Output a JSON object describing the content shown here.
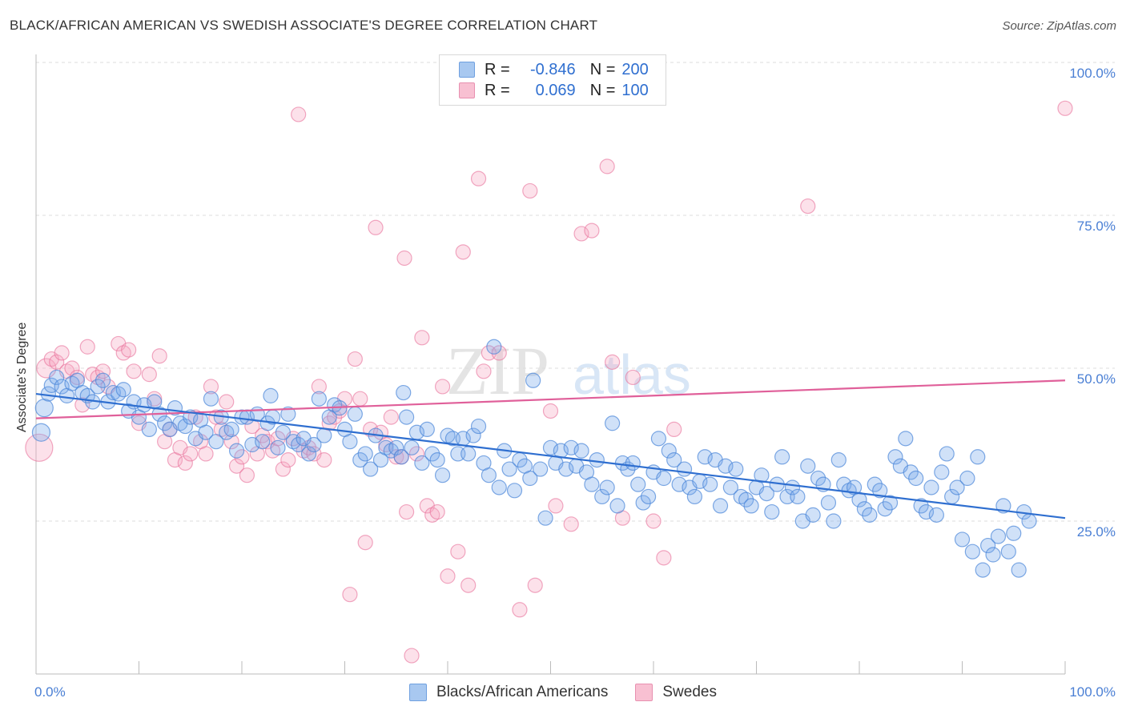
{
  "title": "BLACK/AFRICAN AMERICAN VS SWEDISH ASSOCIATE'S DEGREE CORRELATION CHART",
  "source": "Source: ZipAtlas.com",
  "watermark": {
    "zip": "ZIP",
    "atlas": "atlas"
  },
  "legend": {
    "rows": [
      {
        "r_label": "R =",
        "r_value": "-0.846",
        "n_label": "N =",
        "n_value": "200",
        "color": "#a8c8f0",
        "border": "#6fa0e0"
      },
      {
        "r_label": "R =",
        "r_value": "0.069",
        "n_label": "N =",
        "n_value": "100",
        "color": "#f8c0d2",
        "border": "#e890b0"
      }
    ]
  },
  "colors": {
    "blue": "#4a86d8",
    "blue_fill": "rgba(120,170,235,0.35)",
    "pink": "#e8709a",
    "pink_fill": "rgba(245,170,195,0.35)",
    "tick": "#4a7fd4",
    "blue_line": "#2f6fd0",
    "pink_line": "#e0609a"
  },
  "chart_data": {
    "type": "scatter",
    "title": "BLACK/AFRICAN AMERICAN VS SWEDISH ASSOCIATE'S DEGREE CORRELATION CHART",
    "xlabel": "",
    "ylabel": "Associate's Degree",
    "xlim": [
      0,
      100
    ],
    "ylim": [
      0,
      100
    ],
    "x_ticks": [
      "0.0%",
      "100.0%"
    ],
    "y_ticks": [
      {
        "value": 25,
        "label": "25.0%"
      },
      {
        "value": 50,
        "label": "50.0%"
      },
      {
        "value": 75,
        "label": "75.0%"
      },
      {
        "value": 100,
        "label": "100.0%"
      }
    ],
    "grid": true,
    "legend_position": "bottom",
    "series": [
      {
        "name": "Blacks/African Americans",
        "trend": {
          "x": [
            0,
            100
          ],
          "y": [
            45.8,
            25.5
          ]
        },
        "points": [
          [
            0.5,
            39.5
          ],
          [
            0.8,
            43.5
          ],
          [
            1.2,
            45.8
          ],
          [
            1.5,
            47.2
          ],
          [
            2,
            48.5
          ],
          [
            2.5,
            47
          ],
          [
            3,
            45.5
          ],
          [
            3.5,
            47.5
          ],
          [
            4,
            48
          ],
          [
            4.5,
            46
          ],
          [
            5,
            45.5
          ],
          [
            5.5,
            44.5
          ],
          [
            6,
            47
          ],
          [
            6.5,
            48
          ],
          [
            7,
            44.5
          ],
          [
            7.5,
            46
          ],
          [
            8,
            45.8
          ],
          [
            8.5,
            46.5
          ],
          [
            9,
            43
          ],
          [
            9.5,
            44.5
          ],
          [
            10,
            42
          ],
          [
            10.5,
            44
          ],
          [
            11,
            40
          ],
          [
            11.5,
            44.5
          ],
          [
            12,
            42.5
          ],
          [
            12.5,
            41
          ],
          [
            13,
            40
          ],
          [
            13.5,
            43.5
          ],
          [
            14,
            41
          ],
          [
            14.5,
            40.5
          ],
          [
            15,
            42
          ],
          [
            15.5,
            38.5
          ],
          [
            16,
            41.5
          ],
          [
            16.5,
            39.5
          ],
          [
            17,
            45
          ],
          [
            17.5,
            38
          ],
          [
            18,
            42
          ],
          [
            18.5,
            39.5
          ],
          [
            19,
            40
          ],
          [
            19.5,
            36.5
          ],
          [
            20,
            42
          ],
          [
            20.5,
            42
          ],
          [
            21,
            37.5
          ],
          [
            21.5,
            42.5
          ],
          [
            22,
            38
          ],
          [
            22.5,
            41
          ],
          [
            22.8,
            45.5
          ],
          [
            23,
            42
          ],
          [
            23.5,
            37
          ],
          [
            24,
            39.5
          ],
          [
            24.5,
            42.5
          ],
          [
            25,
            38
          ],
          [
            25.5,
            37.5
          ],
          [
            26,
            38.5
          ],
          [
            26.5,
            36
          ],
          [
            27,
            37.5
          ],
          [
            27.5,
            45
          ],
          [
            28,
            39
          ],
          [
            28.5,
            42
          ],
          [
            29,
            44
          ],
          [
            29.5,
            43.5
          ],
          [
            30,
            40
          ],
          [
            30.5,
            38
          ],
          [
            31,
            42.5
          ],
          [
            31.5,
            35
          ],
          [
            32,
            36
          ],
          [
            32.5,
            33.5
          ],
          [
            33,
            39
          ],
          [
            33.5,
            35
          ],
          [
            34,
            37
          ],
          [
            34.5,
            36.5
          ],
          [
            35,
            37
          ],
          [
            35.5,
            35.5
          ],
          [
            35.7,
            46
          ],
          [
            36,
            42
          ],
          [
            36.5,
            37
          ],
          [
            37,
            39.5
          ],
          [
            37.5,
            34.5
          ],
          [
            38,
            40
          ],
          [
            38.5,
            36
          ],
          [
            39,
            35
          ],
          [
            39.5,
            32.5
          ],
          [
            40,
            39
          ],
          [
            40.5,
            38.5
          ],
          [
            41,
            36
          ],
          [
            41.5,
            38.5
          ],
          [
            42,
            36
          ],
          [
            42.5,
            39
          ],
          [
            43,
            40.5
          ],
          [
            43.5,
            34.5
          ],
          [
            44,
            32.5
          ],
          [
            44.5,
            53.5
          ],
          [
            45,
            30.5
          ],
          [
            45.5,
            36.5
          ],
          [
            46,
            33.5
          ],
          [
            46.5,
            30
          ],
          [
            47,
            35
          ],
          [
            47.5,
            34
          ],
          [
            48,
            32
          ],
          [
            48.3,
            48
          ],
          [
            49,
            33.5
          ],
          [
            49.5,
            25.5
          ],
          [
            50,
            37
          ],
          [
            50.5,
            34.5
          ],
          [
            51,
            36.5
          ],
          [
            51.5,
            33.5
          ],
          [
            52,
            37
          ],
          [
            52.5,
            34
          ],
          [
            53,
            36.5
          ],
          [
            53.5,
            33
          ],
          [
            54,
            31
          ],
          [
            54.5,
            35
          ],
          [
            55,
            29
          ],
          [
            55.5,
            30.5
          ],
          [
            56,
            41
          ],
          [
            56.5,
            27.5
          ],
          [
            57,
            34.5
          ],
          [
            57.5,
            33.5
          ],
          [
            58,
            34.5
          ],
          [
            58.5,
            31
          ],
          [
            59,
            28
          ],
          [
            59.5,
            29
          ],
          [
            60,
            33
          ],
          [
            60.5,
            38.5
          ],
          [
            61,
            32
          ],
          [
            61.5,
            36.5
          ],
          [
            62,
            35
          ],
          [
            62.5,
            31
          ],
          [
            63,
            33.5
          ],
          [
            63.5,
            30.5
          ],
          [
            64,
            29
          ],
          [
            64.5,
            31.5
          ],
          [
            65,
            35.5
          ],
          [
            65.5,
            31
          ],
          [
            66,
            35
          ],
          [
            66.5,
            27.5
          ],
          [
            67,
            34
          ],
          [
            67.5,
            30.5
          ],
          [
            68,
            33.5
          ],
          [
            68.5,
            29
          ],
          [
            69,
            28.5
          ],
          [
            69.5,
            27.5
          ],
          [
            70,
            30.5
          ],
          [
            70.5,
            32.5
          ],
          [
            71,
            29.5
          ],
          [
            71.5,
            26.5
          ],
          [
            72,
            31
          ],
          [
            72.5,
            35.5
          ],
          [
            73,
            29
          ],
          [
            73.5,
            30.5
          ],
          [
            74,
            29
          ],
          [
            74.5,
            25
          ],
          [
            75,
            34
          ],
          [
            75.5,
            26
          ],
          [
            76,
            32
          ],
          [
            76.5,
            31
          ],
          [
            77,
            28
          ],
          [
            77.5,
            25
          ],
          [
            78,
            35
          ],
          [
            78.5,
            31
          ],
          [
            79,
            30
          ],
          [
            79.5,
            30.5
          ],
          [
            80,
            28.5
          ],
          [
            80.5,
            27
          ],
          [
            81,
            26
          ],
          [
            81.5,
            31
          ],
          [
            82,
            30
          ],
          [
            82.5,
            27
          ],
          [
            83,
            28
          ],
          [
            83.5,
            35.5
          ],
          [
            84,
            34
          ],
          [
            84.5,
            38.5
          ],
          [
            85,
            33
          ],
          [
            85.5,
            32
          ],
          [
            86,
            27.5
          ],
          [
            86.5,
            26.5
          ],
          [
            87,
            30.5
          ],
          [
            87.5,
            26
          ],
          [
            88,
            33
          ],
          [
            88.5,
            36
          ],
          [
            89,
            29
          ],
          [
            89.5,
            30.5
          ],
          [
            90,
            22
          ],
          [
            90.5,
            32
          ],
          [
            91,
            20
          ],
          [
            91.5,
            35.5
          ],
          [
            92,
            17
          ],
          [
            92.5,
            21
          ],
          [
            93,
            19.5
          ],
          [
            93.5,
            22.5
          ],
          [
            94,
            27.5
          ],
          [
            94.5,
            20
          ],
          [
            95,
            23
          ],
          [
            95.5,
            17
          ],
          [
            96,
            26.5
          ],
          [
            96.5,
            25
          ]
        ]
      },
      {
        "name": "Swedes",
        "trend": {
          "x": [
            0,
            100
          ],
          "y": [
            41.8,
            48.0
          ]
        },
        "points": [
          [
            0.3,
            37
          ],
          [
            1,
            50
          ],
          [
            1.5,
            51.5
          ],
          [
            2,
            51
          ],
          [
            2.5,
            52.5
          ],
          [
            3,
            49.5
          ],
          [
            3.5,
            50
          ],
          [
            4,
            48.5
          ],
          [
            4.5,
            44
          ],
          [
            5,
            53.5
          ],
          [
            5.5,
            49
          ],
          [
            6,
            48.5
          ],
          [
            6.5,
            49.5
          ],
          [
            7,
            47
          ],
          [
            8,
            54
          ],
          [
            8.5,
            52.5
          ],
          [
            9,
            53
          ],
          [
            9.5,
            49.5
          ],
          [
            10,
            41
          ],
          [
            11,
            49
          ],
          [
            11.5,
            45
          ],
          [
            12,
            52
          ],
          [
            12.5,
            38
          ],
          [
            13,
            40
          ],
          [
            13.5,
            35
          ],
          [
            14,
            37
          ],
          [
            14.5,
            34.5
          ],
          [
            15,
            36
          ],
          [
            15.5,
            42
          ],
          [
            16,
            38
          ],
          [
            16.5,
            36
          ],
          [
            17,
            47
          ],
          [
            17.5,
            42
          ],
          [
            18,
            40
          ],
          [
            18.5,
            44.5
          ],
          [
            19,
            38
          ],
          [
            19.5,
            34
          ],
          [
            20,
            35.5
          ],
          [
            20.5,
            32.5
          ],
          [
            21,
            40.5
          ],
          [
            21.5,
            36
          ],
          [
            22,
            39
          ],
          [
            22.5,
            38
          ],
          [
            23,
            36.5
          ],
          [
            23.5,
            38.5
          ],
          [
            24,
            33.5
          ],
          [
            24.5,
            35
          ],
          [
            25,
            38.5
          ],
          [
            25.5,
            91.5
          ],
          [
            26,
            36.5
          ],
          [
            26.5,
            37
          ],
          [
            27,
            36
          ],
          [
            27.5,
            47
          ],
          [
            28,
            35
          ],
          [
            28.5,
            41
          ],
          [
            29,
            42
          ],
          [
            29.5,
            43
          ],
          [
            30,
            45
          ],
          [
            30.5,
            13
          ],
          [
            31,
            51.5
          ],
          [
            31.5,
            45
          ],
          [
            32,
            21.5
          ],
          [
            32.5,
            40
          ],
          [
            33,
            73
          ],
          [
            33.5,
            39.5
          ],
          [
            34,
            37.5
          ],
          [
            34.5,
            42
          ],
          [
            35,
            35.5
          ],
          [
            35.5,
            35.5
          ],
          [
            35.8,
            68
          ],
          [
            36,
            26.5
          ],
          [
            36.5,
            3
          ],
          [
            37,
            36
          ],
          [
            37.5,
            55
          ],
          [
            38,
            27.5
          ],
          [
            38.5,
            26
          ],
          [
            39,
            26.5
          ],
          [
            39.5,
            47
          ],
          [
            40,
            16
          ],
          [
            41,
            20
          ],
          [
            41.5,
            69
          ],
          [
            42,
            14.5
          ],
          [
            43,
            81
          ],
          [
            43.5,
            49.5
          ],
          [
            44,
            52.5
          ],
          [
            45,
            52.5
          ],
          [
            47,
            10.5
          ],
          [
            48,
            79
          ],
          [
            48.5,
            14.5
          ],
          [
            50,
            43
          ],
          [
            50.5,
            27.5
          ],
          [
            52,
            24.5
          ],
          [
            53,
            72
          ],
          [
            54,
            72.5
          ],
          [
            55.5,
            83
          ],
          [
            56,
            51
          ],
          [
            57,
            25.5
          ],
          [
            58,
            48.5
          ],
          [
            60,
            25
          ],
          [
            61,
            19
          ],
          [
            62,
            40
          ],
          [
            75,
            76.5
          ],
          [
            100,
            92.5
          ]
        ]
      }
    ]
  },
  "bottom_legend": [
    {
      "label": "Blacks/African Americans",
      "color": "#a8c8f0",
      "border": "#6fa0e0"
    },
    {
      "label": "Swedes",
      "color": "#f8c0d2",
      "border": "#e890b0"
    }
  ]
}
